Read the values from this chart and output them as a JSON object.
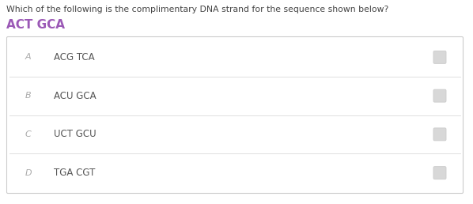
{
  "question": "Which of the following is the complimentary DNA strand for the sequence shown below?",
  "sequence": "ACT GCA",
  "sequence_color": "#9b59b6",
  "options": [
    {
      "letter": "A",
      "text": "ACG TCA"
    },
    {
      "letter": "B",
      "text": "ACU GCA"
    },
    {
      "letter": "C",
      "text": "UCT GCU"
    },
    {
      "letter": "D",
      "text": "TGA CGT"
    }
  ],
  "bg_color": "#ffffff",
  "box_border": "#cccccc",
  "row_bg": "#ffffff",
  "letter_color": "#aaaaaa",
  "text_color": "#555555",
  "question_color": "#444444",
  "radio_fill": "#d8d8d8",
  "radio_edge": "#cccccc",
  "divider_color": "#e0e0e0"
}
